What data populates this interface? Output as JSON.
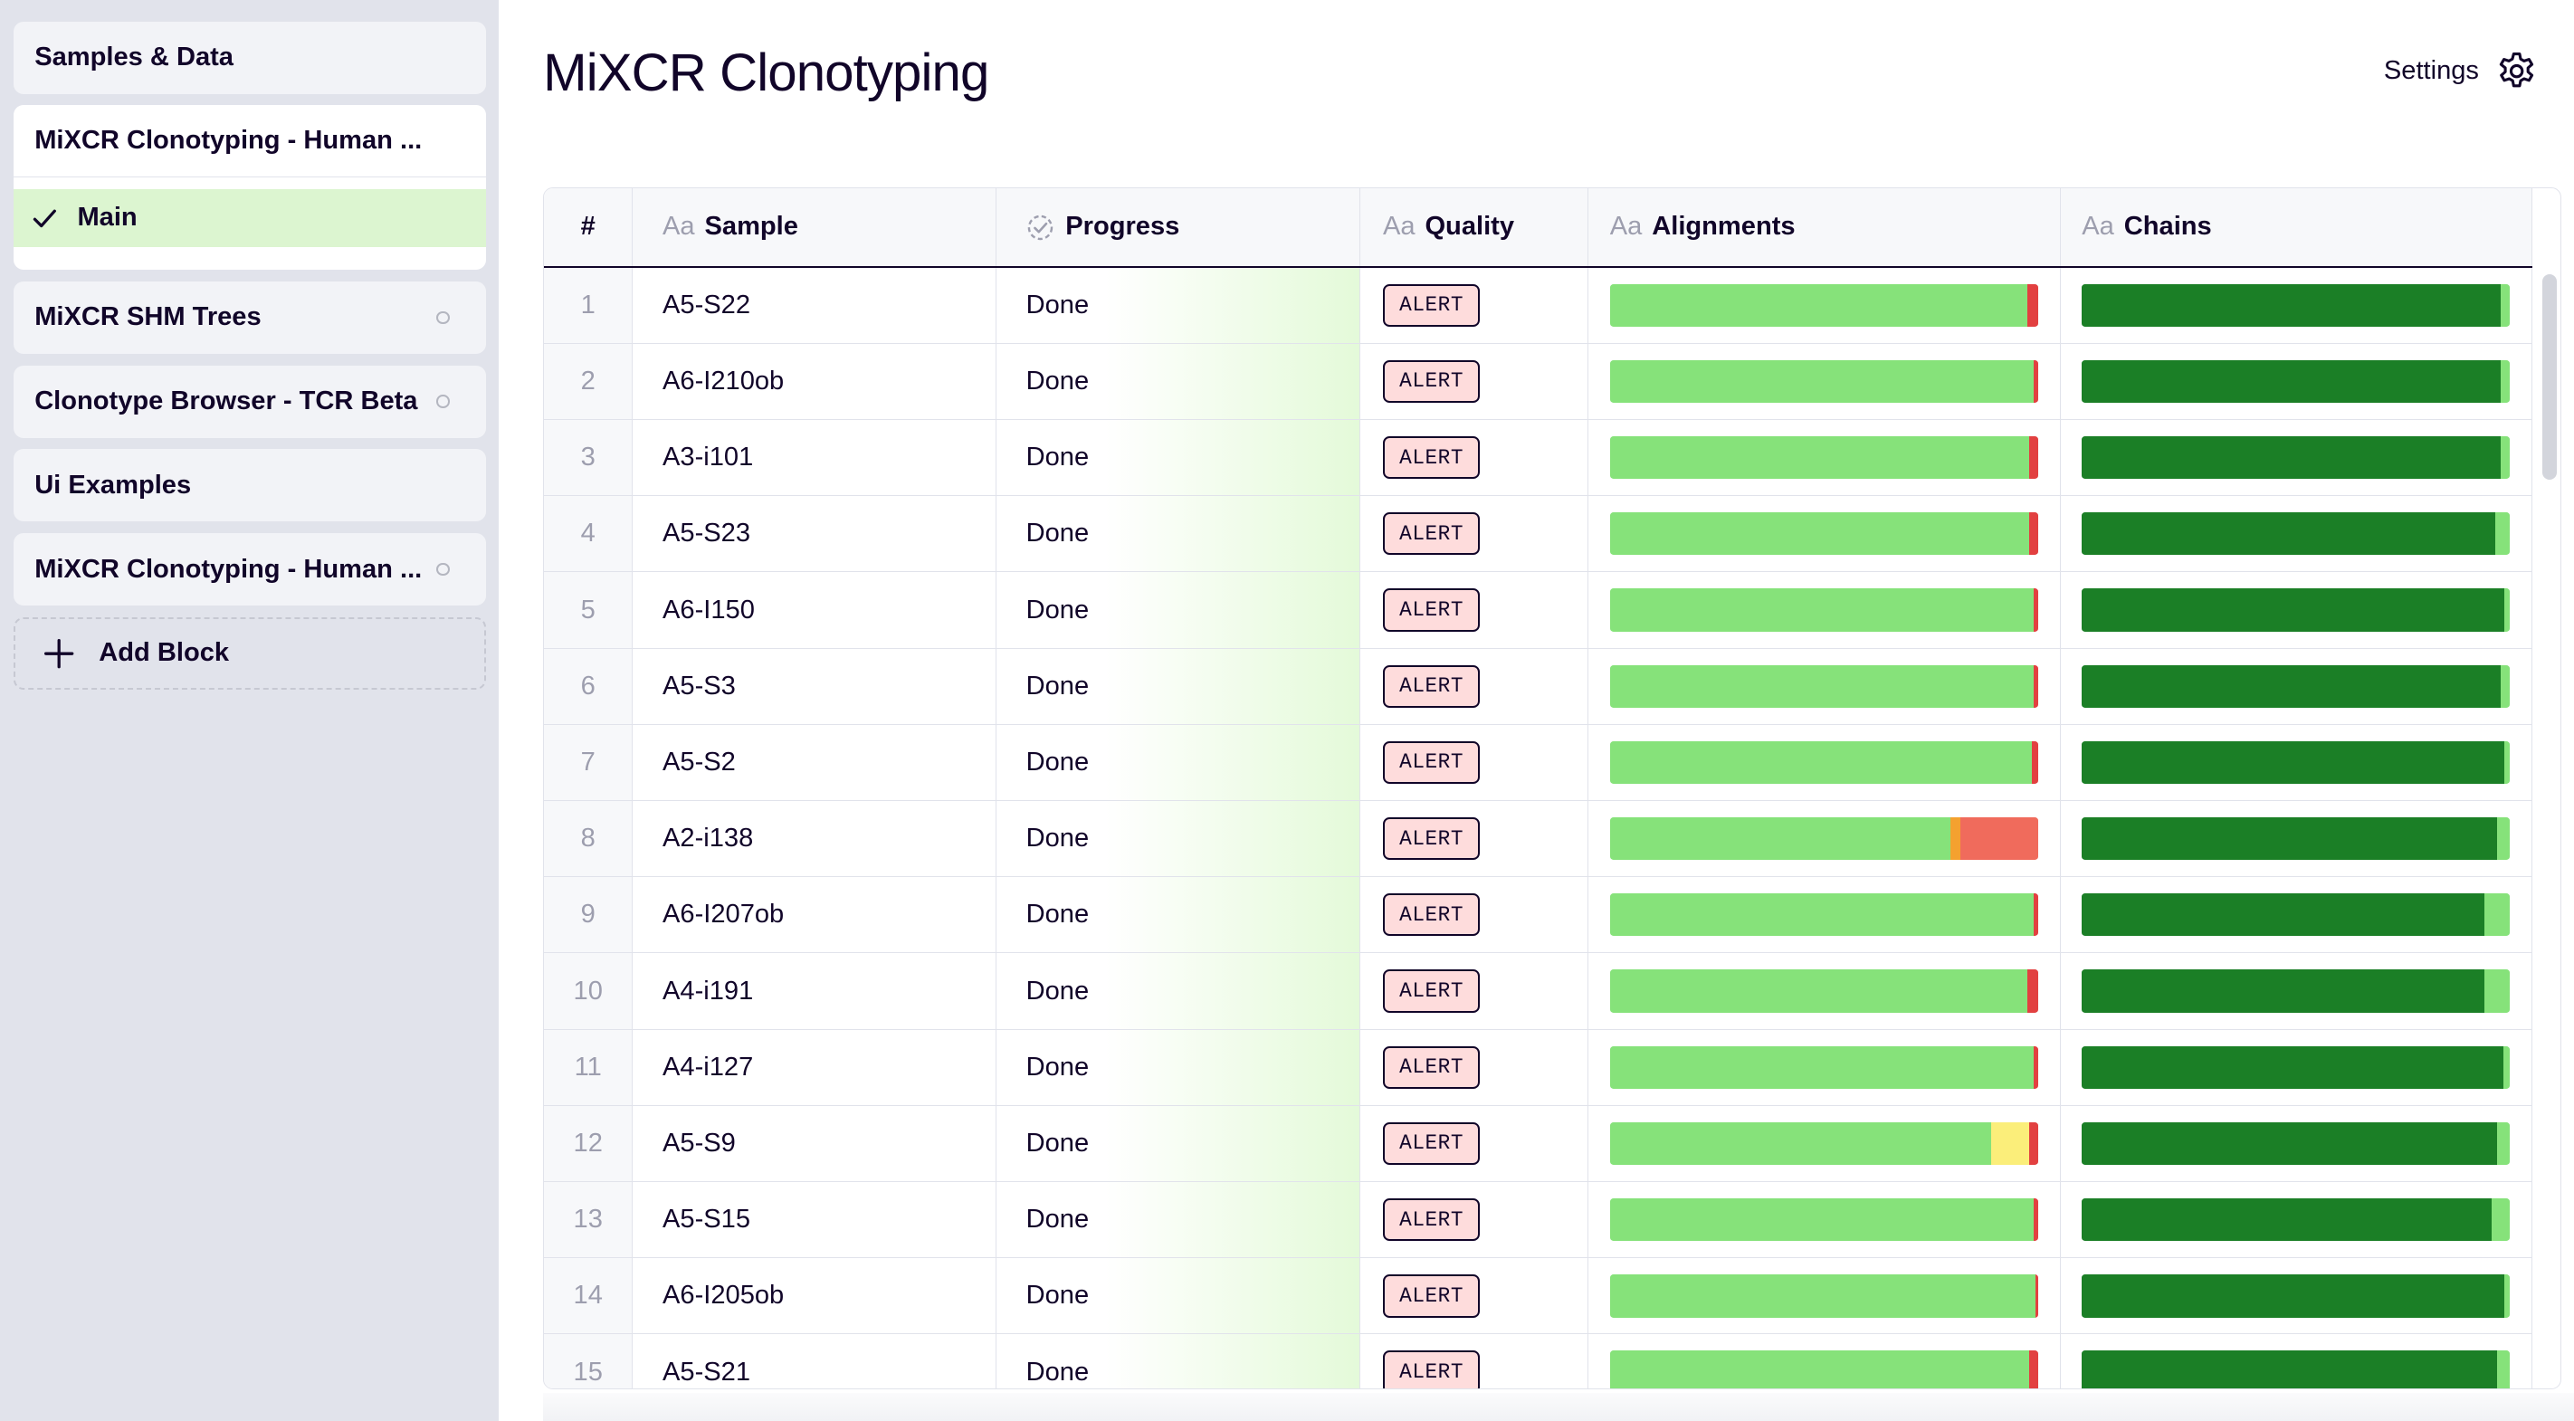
{
  "sidebar": {
    "samples_data": "Samples & Data",
    "group": {
      "title": "MiXCR Clonotyping - Human ...",
      "sub_label": "Main"
    },
    "cards": [
      {
        "label": "MiXCR SHM Trees",
        "has_dot": true
      },
      {
        "label": "Clonotype Browser - TCR Beta",
        "has_dot": true
      },
      {
        "label": "Ui Examples",
        "has_dot": false
      },
      {
        "label": "MiXCR Clonotyping - Human ...",
        "has_dot": true
      }
    ],
    "add_block": "Add Block"
  },
  "header": {
    "title": "MiXCR Clonotyping",
    "settings": "Settings"
  },
  "table": {
    "columns": {
      "num": "#",
      "sample_prefix": "Aa",
      "sample": "Sample",
      "progress": "Progress",
      "quality_prefix": "Aa",
      "quality": "Quality",
      "alignments_prefix": "Aa",
      "alignments": "Alignments",
      "chains_prefix": "Aa",
      "chains": "Chains"
    },
    "colors": {
      "align_green": "#86e27a",
      "align_orange": "#f4a12f",
      "align_red": "#f06b5c",
      "align_yellow": "#fbee7a",
      "align_tail": "#e24040",
      "chain_dark": "#1b7f26",
      "chain_light": "#86e27a"
    },
    "rows": [
      {
        "num": "1",
        "sample": "A5-S22",
        "progress": "Done",
        "quality": "ALERT",
        "alignments": [
          [
            0.975,
            "align_green"
          ],
          [
            0.025,
            "align_tail"
          ]
        ],
        "chains": [
          [
            0.978,
            "chain_dark"
          ],
          [
            0.022,
            "chain_light"
          ]
        ]
      },
      {
        "num": "2",
        "sample": "A6-I210ob",
        "progress": "Done",
        "quality": "ALERT",
        "alignments": [
          [
            0.99,
            "align_green"
          ],
          [
            0.01,
            "align_tail"
          ]
        ],
        "chains": [
          [
            0.978,
            "chain_dark"
          ],
          [
            0.022,
            "chain_light"
          ]
        ]
      },
      {
        "num": "3",
        "sample": "A3-i101",
        "progress": "Done",
        "quality": "ALERT",
        "alignments": [
          [
            0.98,
            "align_green"
          ],
          [
            0.02,
            "align_tail"
          ]
        ],
        "chains": [
          [
            0.978,
            "chain_dark"
          ],
          [
            0.022,
            "chain_light"
          ]
        ]
      },
      {
        "num": "4",
        "sample": "A5-S23",
        "progress": "Done",
        "quality": "ALERT",
        "alignments": [
          [
            0.98,
            "align_green"
          ],
          [
            0.02,
            "align_tail"
          ]
        ],
        "chains": [
          [
            0.965,
            "chain_dark"
          ],
          [
            0.035,
            "chain_light"
          ]
        ]
      },
      {
        "num": "5",
        "sample": "A6-I150",
        "progress": "Done",
        "quality": "ALERT",
        "alignments": [
          [
            0.99,
            "align_green"
          ],
          [
            0.01,
            "align_tail"
          ]
        ],
        "chains": [
          [
            0.988,
            "chain_dark"
          ],
          [
            0.012,
            "chain_light"
          ]
        ]
      },
      {
        "num": "6",
        "sample": "A5-S3",
        "progress": "Done",
        "quality": "ALERT",
        "alignments": [
          [
            0.99,
            "align_green"
          ],
          [
            0.01,
            "align_tail"
          ]
        ],
        "chains": [
          [
            0.978,
            "chain_dark"
          ],
          [
            0.022,
            "chain_light"
          ]
        ]
      },
      {
        "num": "7",
        "sample": "A5-S2",
        "progress": "Done",
        "quality": "ALERT",
        "alignments": [
          [
            0.985,
            "align_green"
          ],
          [
            0.015,
            "align_tail"
          ]
        ],
        "chains": [
          [
            0.988,
            "chain_dark"
          ],
          [
            0.012,
            "chain_light"
          ]
        ]
      },
      {
        "num": "8",
        "sample": "A2-i138",
        "progress": "Done",
        "quality": "ALERT",
        "alignments": [
          [
            0.795,
            "align_green"
          ],
          [
            0.025,
            "align_orange"
          ],
          [
            0.18,
            "align_red"
          ]
        ],
        "chains": [
          [
            0.97,
            "chain_dark"
          ],
          [
            0.03,
            "chain_light"
          ]
        ]
      },
      {
        "num": "9",
        "sample": "A6-I207ob",
        "progress": "Done",
        "quality": "ALERT",
        "alignments": [
          [
            0.99,
            "align_green"
          ],
          [
            0.01,
            "align_tail"
          ]
        ],
        "chains": [
          [
            0.94,
            "chain_dark"
          ],
          [
            0.06,
            "chain_light"
          ]
        ]
      },
      {
        "num": "10",
        "sample": "A4-i191",
        "progress": "Done",
        "quality": "ALERT",
        "alignments": [
          [
            0.975,
            "align_green"
          ],
          [
            0.025,
            "align_tail"
          ]
        ],
        "chains": [
          [
            0.94,
            "chain_dark"
          ],
          [
            0.03,
            "chain_light"
          ],
          [
            0.03,
            "chain_light"
          ]
        ]
      },
      {
        "num": "11",
        "sample": "A4-i127",
        "progress": "Done",
        "quality": "ALERT",
        "alignments": [
          [
            0.99,
            "align_green"
          ],
          [
            0.01,
            "align_tail"
          ]
        ],
        "chains": [
          [
            0.985,
            "chain_dark"
          ],
          [
            0.015,
            "chain_light"
          ]
        ]
      },
      {
        "num": "12",
        "sample": "A5-S9",
        "progress": "Done",
        "quality": "ALERT",
        "alignments": [
          [
            0.89,
            "align_green"
          ],
          [
            0.09,
            "align_yellow"
          ],
          [
            0.02,
            "align_tail"
          ]
        ],
        "chains": [
          [
            0.97,
            "chain_dark"
          ],
          [
            0.03,
            "chain_light"
          ]
        ]
      },
      {
        "num": "13",
        "sample": "A5-S15",
        "progress": "Done",
        "quality": "ALERT",
        "alignments": [
          [
            0.99,
            "align_green"
          ],
          [
            0.01,
            "align_tail"
          ]
        ],
        "chains": [
          [
            0.958,
            "chain_dark"
          ],
          [
            0.042,
            "chain_light"
          ]
        ]
      },
      {
        "num": "14",
        "sample": "A6-I205ob",
        "progress": "Done",
        "quality": "ALERT",
        "alignments": [
          [
            0.995,
            "align_green"
          ],
          [
            0.005,
            "align_tail"
          ]
        ],
        "chains": [
          [
            0.988,
            "chain_dark"
          ],
          [
            0.012,
            "chain_light"
          ]
        ]
      },
      {
        "num": "15",
        "sample": "A5-S21",
        "progress": "Done",
        "quality": "ALERT",
        "alignments": [
          [
            0.98,
            "align_green"
          ],
          [
            0.02,
            "align_tail"
          ]
        ],
        "chains": [
          [
            0.97,
            "chain_dark"
          ],
          [
            0.03,
            "chain_light"
          ]
        ]
      }
    ]
  }
}
